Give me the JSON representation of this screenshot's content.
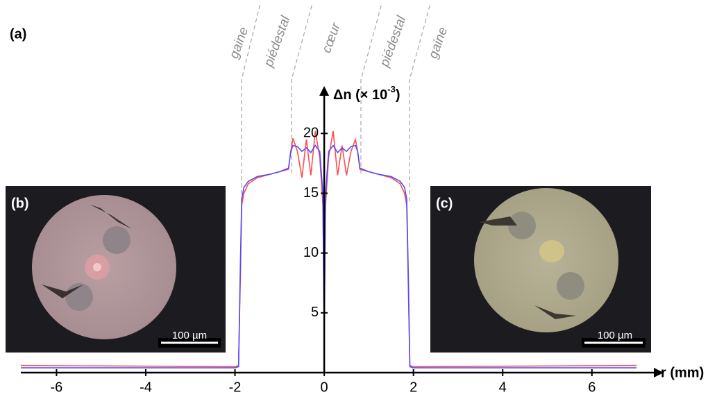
{
  "chart_data": {
    "type": "line",
    "panel_label": "(a)",
    "x_label": "r (mm)",
    "y_label": "Δn (× 10",
    "y_label_exponent": "-3",
    "y_label_close": ")",
    "regions": [
      "gaine",
      "piédestal",
      "cœur",
      "piédestal",
      "gaine"
    ],
    "x": [
      -6.8,
      -2,
      -1.92,
      -1.88,
      -1.85,
      -1.8,
      -1.7,
      -1.5,
      -1.2,
      -1.0,
      -0.8,
      -0.75,
      -0.7,
      -0.6,
      -0.5,
      -0.4,
      -0.3,
      -0.2,
      -0.1,
      -0.03,
      0,
      0.03,
      0.1,
      0.2,
      0.3,
      0.4,
      0.5,
      0.6,
      0.7,
      0.75,
      0.8,
      1.0,
      1.2,
      1.5,
      1.7,
      1.8,
      1.85,
      1.88,
      1.92,
      2,
      7.0
    ],
    "series": [
      {
        "color": "#ff4d4d",
        "values": [
          0.6,
          0.5,
          0.6,
          8,
          14,
          15,
          15.8,
          16.3,
          16.6,
          16.8,
          17,
          18.5,
          19.6,
          18.5,
          16.3,
          19.5,
          16.5,
          20.2,
          18,
          14,
          4,
          14,
          18,
          20.2,
          16.5,
          19,
          16.5,
          18.5,
          19.5,
          18.5,
          17,
          16.8,
          16.6,
          16.3,
          15.8,
          15,
          14,
          8,
          0.6,
          0.5,
          0.6
        ]
      },
      {
        "color": "#4d4dff",
        "values": [
          0.4,
          0.4,
          0.5,
          9,
          14.5,
          15.5,
          16,
          16.4,
          16.6,
          16.8,
          17.1,
          18.5,
          19,
          18.9,
          18.5,
          18.8,
          18.4,
          19,
          18.5,
          15,
          3,
          15,
          18.5,
          19,
          18.4,
          18.8,
          18.5,
          18.9,
          19,
          18.5,
          17.1,
          16.8,
          16.6,
          16.4,
          16,
          15.5,
          14.5,
          9,
          0.5,
          0.4,
          0.4
        ]
      }
    ],
    "xlim": [
      -6.8,
      7.45
    ],
    "ylim": [
      0,
      23.5
    ],
    "xticks": [
      -6,
      -4,
      -2,
      0,
      2,
      4,
      6
    ],
    "yticks": [
      5,
      10,
      15,
      20
    ]
  },
  "insets": [
    {
      "label": "(b)",
      "scale": "100 µm"
    },
    {
      "label": "(c)",
      "scale": "100 µm"
    }
  ]
}
